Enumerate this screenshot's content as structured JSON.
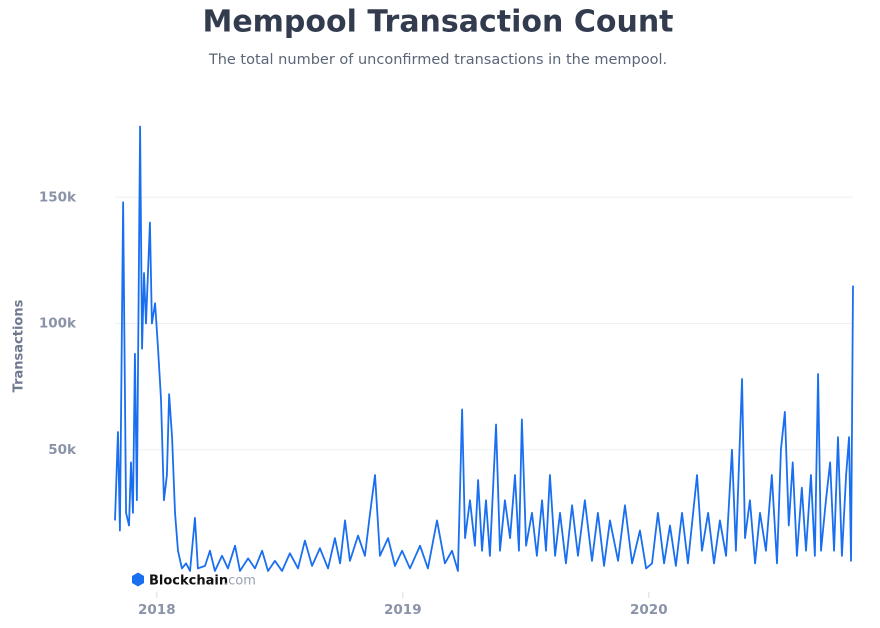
{
  "chart_data": {
    "type": "line",
    "title": "Mempool Transaction Count",
    "subtitle": "The total number of unconfirmed transactions in the mempool.",
    "y_label": "Transactions",
    "watermark": {
      "brand": "Blockchain",
      "suffix": ".com"
    },
    "xlim": [
      2017.83,
      2020.83
    ],
    "xticks": [
      2018,
      2019,
      2020
    ],
    "ylim": [
      0,
      181000
    ],
    "yticks": [
      {
        "value": 50000,
        "label": "50k"
      },
      {
        "value": 100000,
        "label": "100k"
      },
      {
        "value": 150000,
        "label": "150k"
      }
    ],
    "grid": true,
    "x": [
      2017.83,
      2017.842,
      2017.85,
      2017.863,
      2017.875,
      2017.887,
      2017.895,
      2017.903,
      2017.911,
      2017.919,
      2017.932,
      2017.94,
      2017.948,
      2017.956,
      2017.972,
      2017.98,
      2017.993,
      2018.005,
      2018.017,
      2018.029,
      2018.041,
      2018.05,
      2018.062,
      2018.074,
      2018.086,
      2018.102,
      2018.119,
      2018.135,
      2018.155,
      2018.167,
      2018.196,
      2018.216,
      2018.236,
      2018.265,
      2018.289,
      2018.318,
      2018.338,
      2018.371,
      2018.399,
      2018.428,
      2018.452,
      2018.48,
      2018.509,
      2018.541,
      2018.574,
      2018.602,
      2018.631,
      2018.663,
      2018.696,
      2018.724,
      2018.745,
      2018.765,
      2018.785,
      2018.818,
      2018.846,
      2018.867,
      2018.887,
      2018.907,
      2018.94,
      2018.968,
      2018.997,
      2019.029,
      2019.07,
      2019.102,
      2019.139,
      2019.171,
      2019.2,
      2019.224,
      2019.241,
      2019.253,
      2019.273,
      2019.293,
      2019.306,
      2019.322,
      2019.338,
      2019.354,
      2019.379,
      2019.395,
      2019.415,
      2019.436,
      2019.456,
      2019.472,
      2019.484,
      2019.501,
      2019.525,
      2019.545,
      2019.566,
      2019.582,
      2019.598,
      2019.619,
      2019.639,
      2019.663,
      2019.688,
      2019.712,
      2019.74,
      2019.769,
      2019.793,
      2019.818,
      2019.842,
      2019.875,
      2019.903,
      2019.932,
      2019.964,
      2019.989,
      2020.013,
      2020.037,
      2020.062,
      2020.086,
      2020.11,
      2020.135,
      2020.159,
      2020.196,
      2020.216,
      2020.241,
      2020.265,
      2020.289,
      2020.314,
      2020.338,
      2020.354,
      2020.379,
      2020.391,
      2020.411,
      2020.432,
      2020.452,
      2020.476,
      2020.5,
      2020.521,
      2020.537,
      2020.553,
      2020.569,
      2020.585,
      2020.602,
      2020.622,
      2020.639,
      2020.659,
      2020.675,
      2020.688,
      2020.7,
      2020.72,
      2020.737,
      2020.753,
      2020.769,
      2020.785,
      2020.802,
      2020.814,
      2020.822,
      2020.83
    ],
    "series": [
      {
        "name": "Transactions",
        "color": "#1a6ff0",
        "values": [
          22000,
          57000,
          18000,
          148000,
          25000,
          20000,
          45000,
          25000,
          88000,
          30000,
          178000,
          90000,
          120000,
          100000,
          140000,
          100000,
          108000,
          90000,
          70000,
          30000,
          40000,
          72000,
          55000,
          25000,
          10000,
          3000,
          5000,
          2000,
          23000,
          3000,
          4000,
          10000,
          2000,
          8000,
          3000,
          12000,
          2000,
          7000,
          3000,
          10000,
          2000,
          6000,
          2000,
          9000,
          3000,
          14000,
          4000,
          11000,
          3000,
          15000,
          5000,
          22000,
          6000,
          16000,
          8000,
          25000,
          40000,
          8000,
          15000,
          4000,
          10000,
          3000,
          12000,
          3000,
          22000,
          5000,
          10000,
          2000,
          66000,
          15000,
          30000,
          12000,
          38000,
          10000,
          30000,
          8000,
          60000,
          10000,
          30000,
          15000,
          40000,
          10000,
          62000,
          12000,
          25000,
          8000,
          30000,
          10000,
          40000,
          8000,
          25000,
          5000,
          28000,
          8000,
          30000,
          6000,
          25000,
          4000,
          22000,
          6000,
          28000,
          5000,
          18000,
          3000,
          5000,
          25000,
          5000,
          20000,
          4000,
          25000,
          5000,
          40000,
          10000,
          25000,
          5000,
          22000,
          8000,
          50000,
          10000,
          78000,
          15000,
          30000,
          5000,
          25000,
          10000,
          40000,
          5000,
          50000,
          65000,
          20000,
          45000,
          8000,
          35000,
          10000,
          40000,
          8000,
          80000,
          10000,
          30000,
          45000,
          10000,
          55000,
          8000,
          40000,
          55000,
          6000,
          115000
        ]
      }
    ]
  }
}
